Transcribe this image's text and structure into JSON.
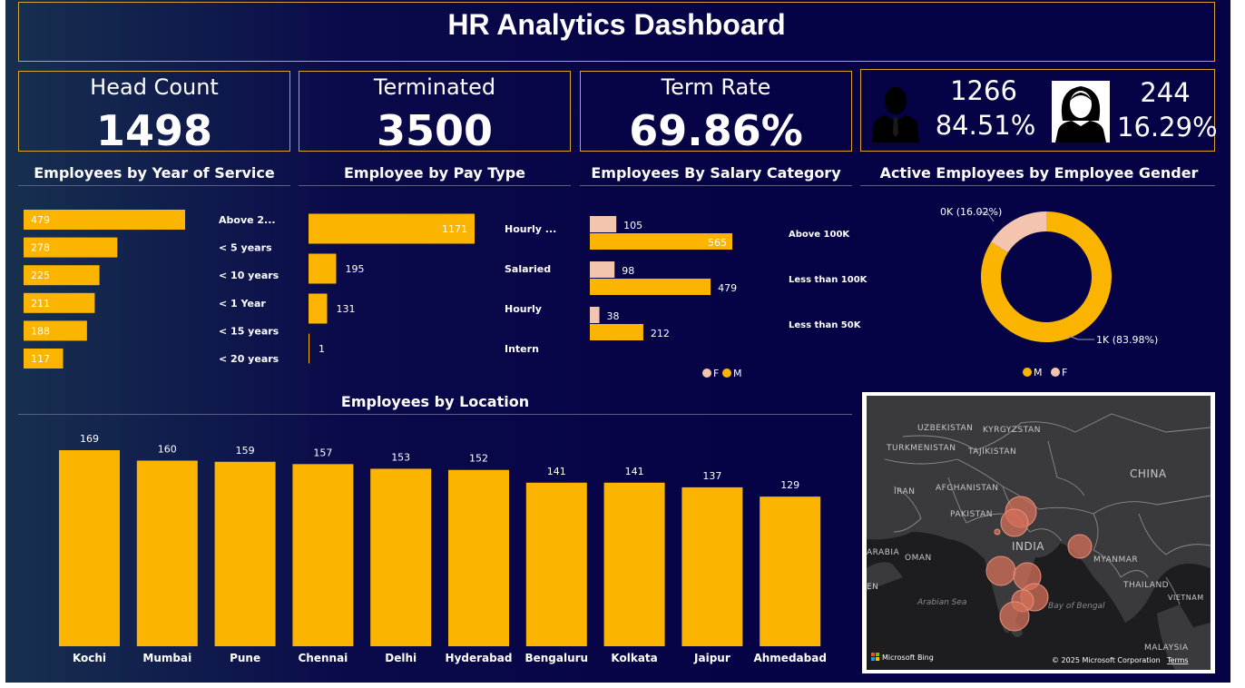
{
  "title": "HR Analytics Dashboard",
  "kpis": {
    "headcount": {
      "label": "Head Count",
      "value": "1498"
    },
    "terminated": {
      "label": "Terminated",
      "value": "3500"
    },
    "term_rate": {
      "label": "Term Rate",
      "value": "69.86%"
    }
  },
  "gender_card": {
    "male_count": "1266",
    "male_pct": "84.51%",
    "female_count": "244",
    "female_pct": "16.29%",
    "male_icon": "male-person-icon",
    "female_icon": "female-person-icon"
  },
  "colors": {
    "male": "#fbb500",
    "female": "#f3c4ae",
    "border": "#d9a431",
    "background": "#050245"
  },
  "legend": {
    "m": "M",
    "f": "F"
  },
  "map": {
    "countries": [
      "UZBEKISTAN",
      "KYRGYZSTAN",
      "TURKMENISTAN",
      "TAJIKISTAN",
      "CHINA",
      "IRAN",
      "AFGHANISTAN",
      "PAKISTAN",
      "INDIA",
      "ARABIA",
      "OMAN",
      "MYANMAR",
      "THAILAND",
      "VIETNAM",
      "MALAYSIA",
      "EN"
    ],
    "seas": [
      "Arabian Sea",
      "Bay of Bengal"
    ],
    "brand": "Microsoft Bing",
    "copyright": "© 2025 Microsoft Corporation",
    "terms": "Terms"
  },
  "chart_data": [
    {
      "id": "year_of_service",
      "type": "bar",
      "orientation": "horizontal",
      "title": "Employees by Year of Service",
      "categories": [
        "Above 2...",
        "< 5 years",
        "< 10 years",
        "< 1 Year",
        "< 15 years",
        "< 20 years"
      ],
      "values": [
        479,
        278,
        225,
        211,
        188,
        117
      ]
    },
    {
      "id": "pay_type",
      "type": "bar",
      "orientation": "horizontal",
      "title": "Employee by Pay Type",
      "categories": [
        "Hourly ...",
        "Salaried",
        "Hourly",
        "Intern"
      ],
      "values": [
        1171,
        195,
        131,
        1
      ]
    },
    {
      "id": "salary_category",
      "type": "bar",
      "orientation": "horizontal",
      "title": "Employees By Salary Category",
      "categories": [
        "Above 100K",
        "Less than 100K",
        "Less than 50K"
      ],
      "series": [
        {
          "name": "F",
          "values": [
            105,
            98,
            38
          ]
        },
        {
          "name": "M",
          "values": [
            565,
            479,
            212
          ]
        }
      ]
    },
    {
      "id": "gender_donut",
      "type": "pie",
      "title": "Active Employees by Employee Gender",
      "categories": [
        "M",
        "F"
      ],
      "values": [
        83.98,
        16.02
      ],
      "labels": [
        "1K (83.98%)",
        "0K (16.02%)"
      ]
    },
    {
      "id": "location",
      "type": "bar",
      "orientation": "vertical",
      "title": "Employees by Location",
      "categories": [
        "Kochi",
        "Mumbai",
        "Pune",
        "Chennai",
        "Delhi",
        "Hyderabad",
        "Bengaluru",
        "Kolkata",
        "Jaipur",
        "Ahmedabad"
      ],
      "values": [
        169,
        160,
        159,
        157,
        153,
        152,
        141,
        141,
        137,
        129
      ]
    }
  ]
}
